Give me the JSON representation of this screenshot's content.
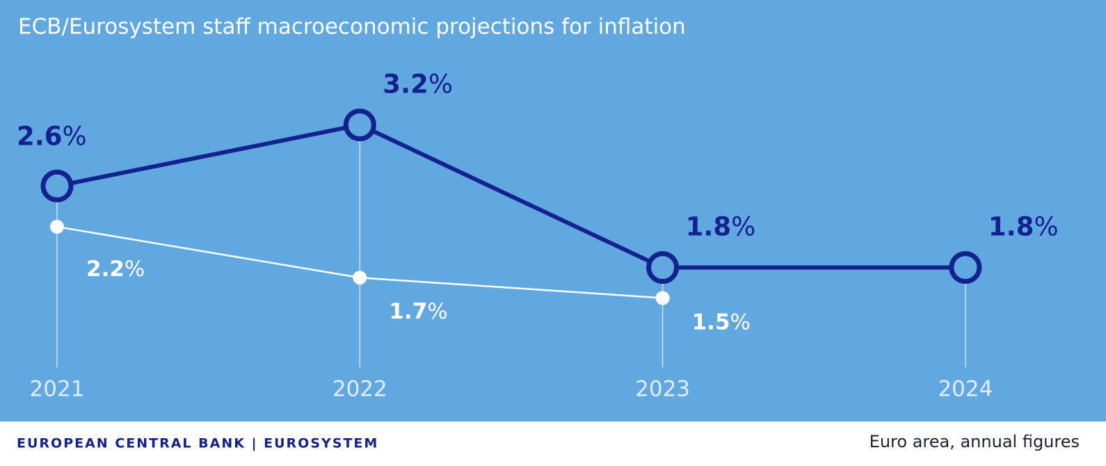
{
  "chart_data": {
    "type": "line",
    "title": "ECB/Eurosystem staff macroeconomic projections for inflation",
    "footer_left": "EUROPEAN CENTRAL BANK | EUROSYSTEM",
    "footer_right": "Euro area, annual figures",
    "categories": [
      "2021",
      "2022",
      "2023",
      "2024"
    ],
    "series": [
      {
        "color": "#13228f",
        "values": [
          2.6,
          3.2,
          1.8,
          1.8
        ],
        "value_labels": [
          "2.6%",
          "3.2%",
          "1.8%",
          "1.8%"
        ]
      },
      {
        "color": "#ffffff",
        "values": [
          2.2,
          1.7,
          1.5,
          null
        ],
        "value_labels": [
          "2.2%",
          "1.7%",
          "1.5%",
          null
        ]
      }
    ],
    "ylim": [
      0.8,
      3.6
    ]
  }
}
